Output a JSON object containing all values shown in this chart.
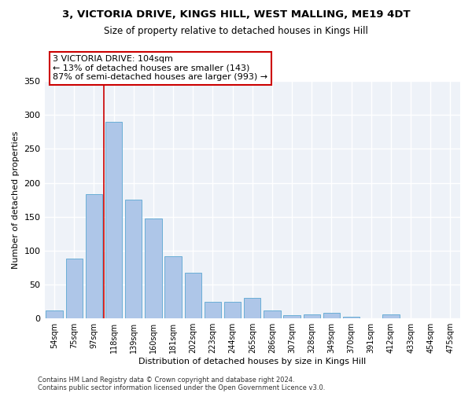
{
  "title1": "3, VICTORIA DRIVE, KINGS HILL, WEST MALLING, ME19 4DT",
  "title2": "Size of property relative to detached houses in Kings Hill",
  "xlabel": "Distribution of detached houses by size in Kings Hill",
  "ylabel": "Number of detached properties",
  "categories": [
    "54sqm",
    "75sqm",
    "97sqm",
    "118sqm",
    "139sqm",
    "160sqm",
    "181sqm",
    "202sqm",
    "223sqm",
    "244sqm",
    "265sqm",
    "286sqm",
    "307sqm",
    "328sqm",
    "349sqm",
    "370sqm",
    "391sqm",
    "412sqm",
    "433sqm",
    "454sqm",
    "475sqm"
  ],
  "values": [
    12,
    88,
    183,
    290,
    175,
    148,
    92,
    68,
    25,
    25,
    30,
    12,
    5,
    6,
    8,
    3,
    0,
    6,
    0,
    0,
    0
  ],
  "bar_color": "#aec6e8",
  "bar_edgecolor": "#6aaed6",
  "property_line_x": 2.5,
  "annotation_text": "3 VICTORIA DRIVE: 104sqm\n← 13% of detached houses are smaller (143)\n87% of semi-detached houses are larger (993) →",
  "annotation_box_color": "white",
  "annotation_box_edgecolor": "#cc0000",
  "vline_color": "#cc0000",
  "background_color": "#eef2f8",
  "grid_color": "white",
  "footer1": "Contains HM Land Registry data © Crown copyright and database right 2024.",
  "footer2": "Contains public sector information licensed under the Open Government Licence v3.0.",
  "ylim": [
    0,
    350
  ],
  "yticks": [
    0,
    50,
    100,
    150,
    200,
    250,
    300,
    350
  ]
}
